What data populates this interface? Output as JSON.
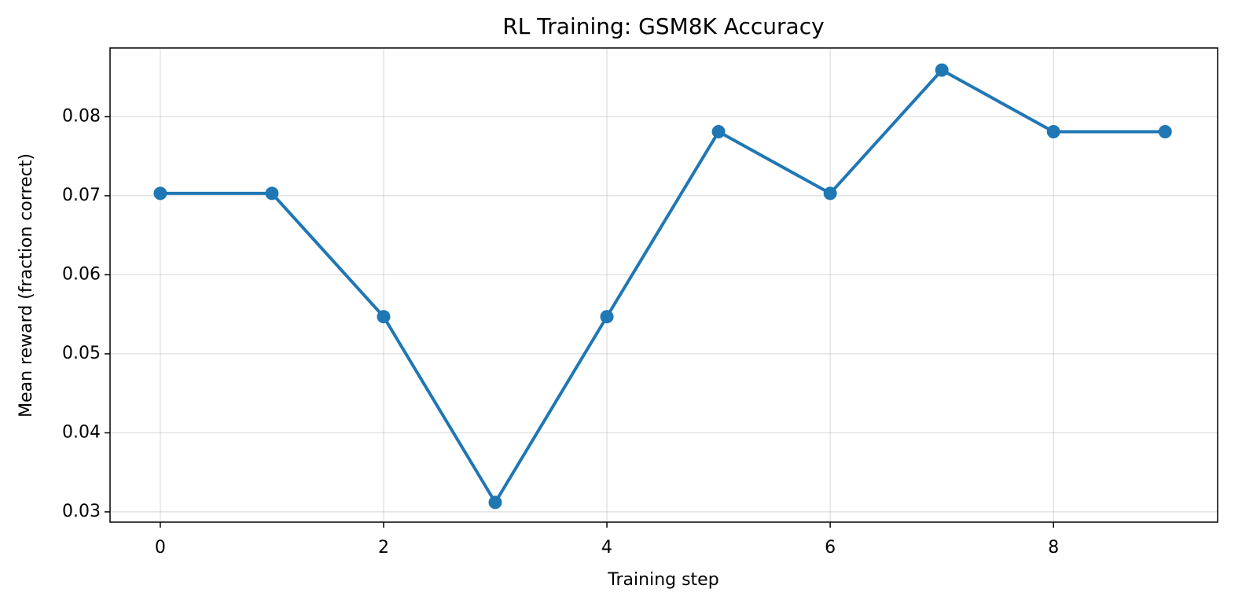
{
  "chart_data": {
    "type": "line",
    "title": "RL Training: GSM8K Accuracy",
    "x_label": "Training step",
    "y_label": "Mean reward (fraction correct)",
    "x": [
      0,
      1,
      2,
      3,
      4,
      5,
      6,
      7,
      8,
      9
    ],
    "series": [
      {
        "name": "GSM8K accuracy",
        "color": "#1f77b4",
        "values": [
          0.0703,
          0.0703,
          0.0547,
          0.0312,
          0.0547,
          0.0781,
          0.0703,
          0.0859,
          0.0781,
          0.0781
        ]
      }
    ],
    "xlim": [
      -0.45,
      9.47
    ],
    "ylim": [
      0.0287,
      0.0887
    ],
    "xticks": [
      0,
      2,
      4,
      6,
      8
    ],
    "yticks": [
      0.03,
      0.04,
      0.05,
      0.06,
      0.07,
      0.08
    ],
    "grid": true,
    "markers": true
  }
}
